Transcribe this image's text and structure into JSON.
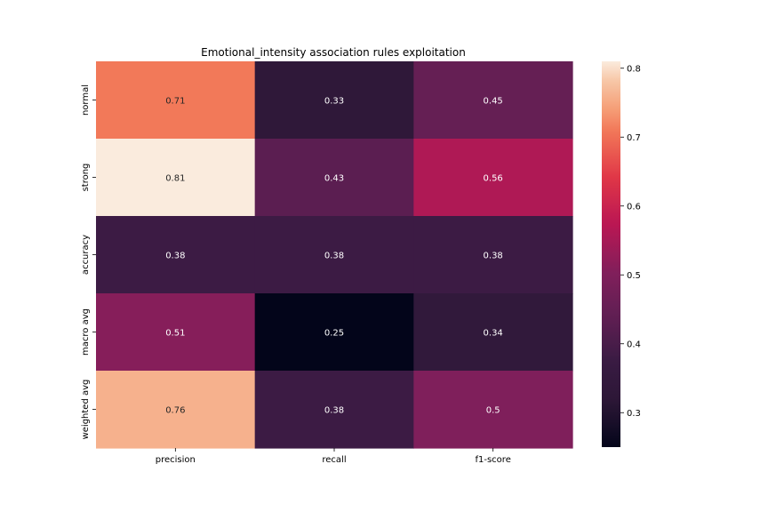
{
  "chart_data": {
    "type": "heatmap",
    "title": "Emotional_intensity association rules exploitation",
    "xlabel": "",
    "ylabel": "",
    "columns": [
      "precision",
      "recall",
      "f1-score"
    ],
    "rows": [
      "normal",
      "strong",
      "accuracy",
      "macro avg",
      "weighted avg"
    ],
    "values": [
      [
        0.71,
        0.33,
        0.45
      ],
      [
        0.81,
        0.43,
        0.56
      ],
      [
        0.38,
        0.38,
        0.38
      ],
      [
        0.51,
        0.25,
        0.34
      ],
      [
        0.76,
        0.38,
        0.5
      ]
    ],
    "value_labels": [
      [
        "0.71",
        "0.33",
        "0.45"
      ],
      [
        "0.81",
        "0.43",
        "0.56"
      ],
      [
        "0.38",
        "0.38",
        "0.38"
      ],
      [
        "0.51",
        "0.25",
        "0.34"
      ],
      [
        "0.76",
        "0.38",
        "0.5"
      ]
    ],
    "colorbar": {
      "colormap": "rocket",
      "range": [
        0.25,
        0.81
      ],
      "ticks": [
        "0.3",
        "0.4",
        "0.5",
        "0.6",
        "0.7",
        "0.8"
      ]
    }
  }
}
